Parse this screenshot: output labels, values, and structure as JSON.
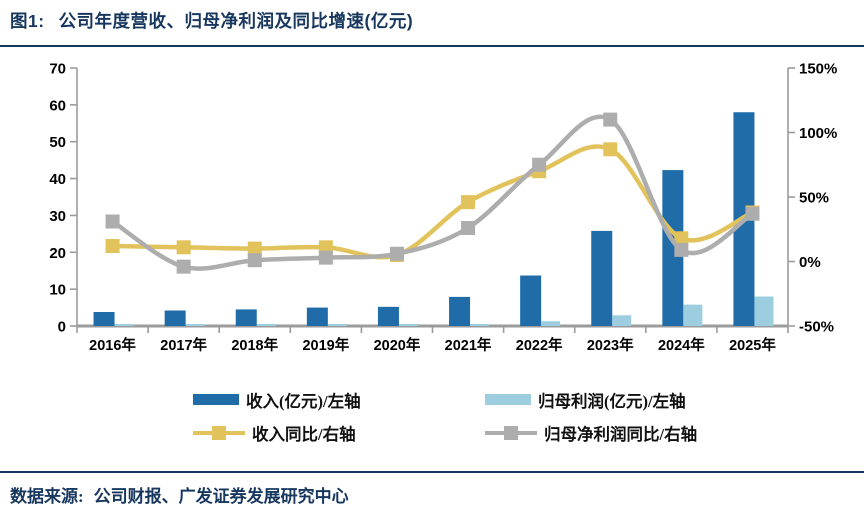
{
  "header": {
    "figure_label": "图1:",
    "title": "公司年度营收、归母净利润及同比增速(亿元)"
  },
  "footer": {
    "label": "数据来源:",
    "text": "公司财报、广发证券发展研究中心"
  },
  "colors": {
    "revenue_bar": "#1F6CA8",
    "profit_bar": "#9CCEDF",
    "revenue_yoy_line": "#E2C35B",
    "profit_yoy_line": "#ADADAD",
    "axis": "#9B9B9B",
    "text": "#000000",
    "navy": "#17375E"
  },
  "chart_data": {
    "type": "bar",
    "subtype": "combo-bar-line-dual-axis",
    "categories": [
      "2016年",
      "2017年",
      "2018年",
      "2019年",
      "2020年",
      "2021年",
      "2022年",
      "2023年",
      "2024年",
      "2025年"
    ],
    "series": [
      {
        "name": "收入(亿元)/左轴",
        "type": "bar",
        "axis": "left",
        "color_key": "revenue_bar",
        "values": [
          3.8,
          4.2,
          4.5,
          5.0,
          5.2,
          7.9,
          13.7,
          25.8,
          42.3,
          58.0
        ]
      },
      {
        "name": "归母利润(亿元)/左轴",
        "type": "bar",
        "axis": "left",
        "color_key": "profit_bar",
        "values": [
          0.3,
          0.3,
          0.3,
          0.4,
          0.4,
          0.5,
          1.3,
          2.9,
          5.8,
          8.0
        ]
      },
      {
        "name": "收入同比/右轴",
        "type": "line",
        "axis": "right",
        "color_key": "revenue_yoy_line",
        "values": [
          12,
          11,
          10,
          11,
          5,
          46,
          70,
          87,
          18,
          38
        ]
      },
      {
        "name": "归母净利润同比/右轴",
        "type": "line",
        "axis": "right",
        "color_key": "profit_yoy_line",
        "values": [
          31,
          -4,
          1,
          3,
          6,
          26,
          75,
          110,
          9,
          37
        ]
      }
    ],
    "left_axis": {
      "min": 0,
      "max": 70,
      "step": 10,
      "ticks": [
        "0",
        "10",
        "20",
        "30",
        "40",
        "50",
        "60",
        "70"
      ]
    },
    "right_axis": {
      "min": -50,
      "max": 150,
      "step": 50,
      "ticks": [
        "-50%",
        "0%",
        "50%",
        "100%",
        "150%"
      ],
      "unit": "%"
    },
    "grid": false,
    "legend_position": "bottom",
    "smoothed_lines": true
  }
}
